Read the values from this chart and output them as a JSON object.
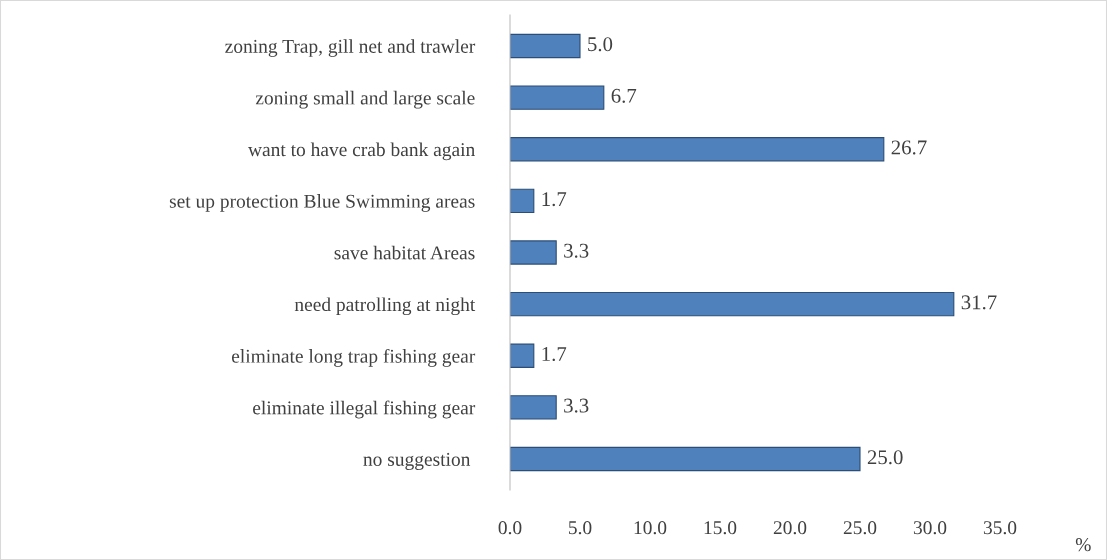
{
  "chart_data": {
    "type": "bar",
    "orientation": "horizontal",
    "xlabel": "%",
    "categories": [
      "zoning Trap, gill net and trawler",
      "zoning small and large scale",
      "want to have crab bank again",
      "set up protection Blue Swimming areas",
      "save habitat Areas",
      "need patrolling at night",
      "eliminate long trap fishing gear",
      "eliminate illegal fishing gear",
      "no suggestion "
    ],
    "values": [
      5.0,
      6.7,
      26.7,
      1.7,
      3.3,
      31.7,
      1.7,
      3.3,
      25.0
    ],
    "value_labels": [
      "5.0",
      "6.7",
      "26.7",
      "1.7",
      "3.3",
      "31.7",
      "1.7",
      "3.3",
      "25.0"
    ],
    "color": "#4f81bd",
    "xlim": [
      0,
      35
    ],
    "xticks": [
      {
        "value": 0,
        "label": "0.0"
      },
      {
        "value": 5,
        "label": "5.0"
      },
      {
        "value": 10,
        "label": "10.0"
      },
      {
        "value": 15,
        "label": "15.0"
      },
      {
        "value": 20,
        "label": "20.0"
      },
      {
        "value": 25,
        "label": "25.0"
      },
      {
        "value": 30,
        "label": "30.0"
      },
      {
        "value": 35,
        "label": "35.0"
      }
    ],
    "grid": false,
    "legend": false
  }
}
